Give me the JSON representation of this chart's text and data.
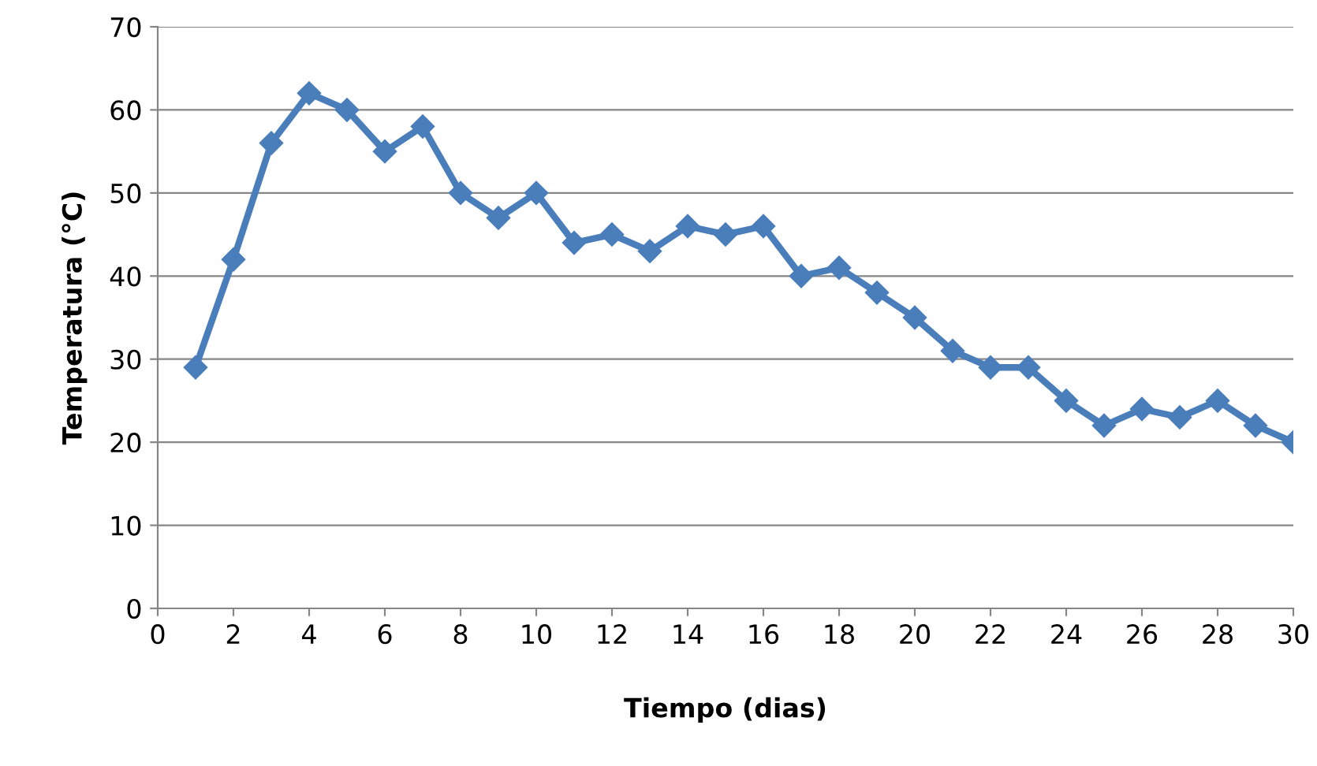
{
  "chart_data": {
    "type": "line",
    "xlabel": "Tiempo (dias)",
    "ylabel": "Temperatura (°C)",
    "x": [
      1,
      2,
      3,
      4,
      5,
      6,
      7,
      8,
      9,
      10,
      11,
      12,
      13,
      14,
      15,
      16,
      17,
      18,
      19,
      20,
      21,
      22,
      23,
      24,
      25,
      26,
      27,
      28,
      29,
      30
    ],
    "series": [
      {
        "color": "#4a7ebb",
        "values": [
          29,
          42,
          56,
          62,
          60,
          55,
          58,
          50,
          47,
          50,
          44,
          45,
          43,
          46,
          45,
          46,
          40,
          41,
          38,
          35,
          31,
          29,
          29,
          25,
          22,
          24,
          23,
          25,
          22,
          20
        ]
      }
    ],
    "xlim": [
      0,
      30
    ],
    "xticks": [
      0,
      2,
      4,
      6,
      8,
      10,
      12,
      14,
      16,
      18,
      20,
      22,
      24,
      26,
      28,
      30
    ],
    "ylim": [
      0,
      70
    ],
    "yticks": [
      0,
      10,
      20,
      30,
      40,
      50,
      60,
      70
    ],
    "grid": "y",
    "marker": "diamond",
    "line_style": "solid",
    "legend": false
  }
}
